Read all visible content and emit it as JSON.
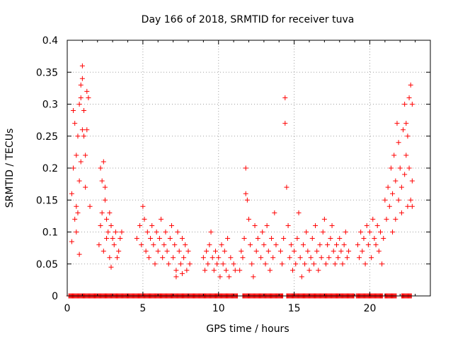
{
  "chart_data": {
    "type": "scatter",
    "title": "Day 166 of 2018, SRMTID for receiver tuva",
    "xlabel": "GPS time / hours",
    "ylabel": "SRMTID / TECUs",
    "xlim": [
      0,
      24
    ],
    "ylim": [
      0,
      0.4
    ],
    "grid": true,
    "marker": "+",
    "color": "#ff0000",
    "x_ticks": [
      0,
      5,
      10,
      15,
      20
    ],
    "x_tick_labels": [
      "0",
      "5",
      "10",
      "15",
      "20"
    ],
    "y_ticks": [
      0,
      0.05,
      0.1,
      0.15,
      0.2,
      0.25,
      0.3,
      0.35,
      0.4
    ],
    "y_tick_labels": [
      "0",
      "0.05",
      "0.1",
      "0.15",
      "0.2",
      "0.25",
      "0.3",
      "0.35",
      "0.4"
    ],
    "series": [
      {
        "name": "SRMTID",
        "points": [
          [
            0.3,
            0.16
          ],
          [
            0.4,
            0.2
          ],
          [
            0.4,
            0.29
          ],
          [
            0.5,
            0.27
          ],
          [
            0.5,
            0.12
          ],
          [
            0.6,
            0.14
          ],
          [
            0.6,
            0.22
          ],
          [
            0.7,
            0.13
          ],
          [
            0.7,
            0.25
          ],
          [
            0.8,
            0.18
          ],
          [
            0.8,
            0.3
          ],
          [
            0.9,
            0.31
          ],
          [
            0.9,
            0.33
          ],
          [
            0.9,
            0.21
          ],
          [
            1.0,
            0.36
          ],
          [
            1.0,
            0.34
          ],
          [
            1.0,
            0.26
          ],
          [
            1.1,
            0.25
          ],
          [
            1.1,
            0.29
          ],
          [
            1.2,
            0.22
          ],
          [
            1.2,
            0.17
          ],
          [
            1.3,
            0.32
          ],
          [
            1.3,
            0.26
          ],
          [
            1.4,
            0.31
          ],
          [
            1.5,
            0.14
          ],
          [
            0.8,
            0.065
          ],
          [
            0.3,
            0.085
          ],
          [
            0.6,
            0.1
          ],
          [
            2.2,
            0.2
          ],
          [
            2.3,
            0.18
          ],
          [
            2.4,
            0.21
          ],
          [
            2.5,
            0.15
          ],
          [
            2.2,
            0.11
          ],
          [
            2.3,
            0.13
          ],
          [
            2.5,
            0.17
          ],
          [
            2.6,
            0.12
          ],
          [
            2.7,
            0.1
          ],
          [
            2.8,
            0.13
          ],
          [
            2.9,
            0.11
          ],
          [
            3.0,
            0.09
          ],
          [
            2.8,
            0.06
          ],
          [
            2.9,
            0.045
          ],
          [
            3.1,
            0.08
          ],
          [
            3.2,
            0.1
          ],
          [
            3.4,
            0.07
          ],
          [
            3.5,
            0.09
          ],
          [
            3.6,
            0.1
          ],
          [
            3.3,
            0.06
          ],
          [
            2.1,
            0.08
          ],
          [
            2.4,
            0.07
          ],
          [
            2.6,
            0.09
          ],
          [
            4.6,
            0.09
          ],
          [
            4.8,
            0.11
          ],
          [
            4.9,
            0.08
          ],
          [
            5.0,
            0.14
          ],
          [
            5.1,
            0.12
          ],
          [
            5.2,
            0.07
          ],
          [
            5.3,
            0.1
          ],
          [
            5.4,
            0.06
          ],
          [
            5.5,
            0.09
          ],
          [
            5.6,
            0.11
          ],
          [
            5.7,
            0.08
          ],
          [
            5.8,
            0.05
          ],
          [
            5.9,
            0.1
          ],
          [
            6.0,
            0.07
          ],
          [
            6.1,
            0.09
          ],
          [
            6.2,
            0.12
          ],
          [
            6.3,
            0.06
          ],
          [
            6.4,
            0.08
          ],
          [
            6.5,
            0.1
          ],
          [
            6.6,
            0.07
          ],
          [
            6.7,
            0.05
          ],
          [
            6.8,
            0.09
          ],
          [
            6.9,
            0.11
          ],
          [
            7.0,
            0.06
          ],
          [
            7.1,
            0.08
          ],
          [
            7.2,
            0.04
          ],
          [
            7.3,
            0.1
          ],
          [
            7.4,
            0.07
          ],
          [
            7.5,
            0.05
          ],
          [
            7.6,
            0.09
          ],
          [
            7.7,
            0.06
          ],
          [
            7.8,
            0.08
          ],
          [
            7.9,
            0.04
          ],
          [
            8.0,
            0.07
          ],
          [
            8.1,
            0.05
          ],
          [
            7.2,
            0.03
          ],
          [
            7.6,
            0.035
          ],
          [
            9.0,
            0.06
          ],
          [
            9.1,
            0.04
          ],
          [
            9.2,
            0.07
          ],
          [
            9.3,
            0.05
          ],
          [
            9.4,
            0.08
          ],
          [
            9.5,
            0.1
          ],
          [
            9.6,
            0.06
          ],
          [
            9.7,
            0.04
          ],
          [
            9.8,
            0.07
          ],
          [
            9.9,
            0.05
          ],
          [
            10.0,
            0.06
          ],
          [
            10.1,
            0.03
          ],
          [
            10.2,
            0.08
          ],
          [
            10.3,
            0.05
          ],
          [
            10.4,
            0.07
          ],
          [
            10.5,
            0.04
          ],
          [
            10.6,
            0.09
          ],
          [
            10.8,
            0.06
          ],
          [
            11.0,
            0.05
          ],
          [
            11.1,
            0.04
          ],
          [
            10.7,
            0.03
          ],
          [
            11.4,
            0.04
          ],
          [
            11.5,
            0.07
          ],
          [
            11.6,
            0.06
          ],
          [
            11.7,
            0.09
          ],
          [
            11.8,
            0.2
          ],
          [
            11.8,
            0.16
          ],
          [
            11.9,
            0.15
          ],
          [
            12.0,
            0.12
          ],
          [
            12.1,
            0.08
          ],
          [
            12.2,
            0.05
          ],
          [
            12.3,
            0.03
          ],
          [
            12.4,
            0.11
          ],
          [
            12.5,
            0.07
          ],
          [
            12.6,
            0.09
          ],
          [
            12.8,
            0.06
          ],
          [
            12.9,
            0.1
          ],
          [
            13.0,
            0.08
          ],
          [
            13.1,
            0.05
          ],
          [
            13.2,
            0.11
          ],
          [
            13.3,
            0.07
          ],
          [
            13.4,
            0.04
          ],
          [
            13.5,
            0.09
          ],
          [
            13.6,
            0.06
          ],
          [
            13.7,
            0.13
          ],
          [
            13.8,
            0.08
          ],
          [
            14.1,
            0.07
          ],
          [
            14.2,
            0.05
          ],
          [
            14.3,
            0.09
          ],
          [
            14.4,
            0.31
          ],
          [
            14.4,
            0.27
          ],
          [
            14.5,
            0.17
          ],
          [
            14.6,
            0.11
          ],
          [
            14.7,
            0.06
          ],
          [
            14.8,
            0.08
          ],
          [
            14.9,
            0.04
          ],
          [
            15.0,
            0.07
          ],
          [
            15.1,
            0.05
          ],
          [
            15.2,
            0.09
          ],
          [
            15.3,
            0.13
          ],
          [
            15.4,
            0.06
          ],
          [
            15.5,
            0.03
          ],
          [
            15.6,
            0.08
          ],
          [
            15.7,
            0.05
          ],
          [
            15.8,
            0.1
          ],
          [
            15.9,
            0.07
          ],
          [
            16.0,
            0.04
          ],
          [
            16.1,
            0.06
          ],
          [
            16.2,
            0.09
          ],
          [
            16.3,
            0.05
          ],
          [
            16.4,
            0.11
          ],
          [
            16.5,
            0.07
          ],
          [
            16.6,
            0.04
          ],
          [
            16.7,
            0.08
          ],
          [
            16.8,
            0.06
          ],
          [
            16.9,
            0.1
          ],
          [
            17.0,
            0.12
          ],
          [
            17.1,
            0.05
          ],
          [
            17.2,
            0.08
          ],
          [
            17.3,
            0.06
          ],
          [
            17.4,
            0.09
          ],
          [
            17.5,
            0.11
          ],
          [
            17.6,
            0.07
          ],
          [
            17.7,
            0.05
          ],
          [
            17.8,
            0.08
          ],
          [
            17.9,
            0.06
          ],
          [
            18.0,
            0.09
          ],
          [
            18.1,
            0.07
          ],
          [
            18.2,
            0.05
          ],
          [
            18.3,
            0.08
          ],
          [
            18.4,
            0.1
          ],
          [
            18.5,
            0.06
          ],
          [
            18.6,
            0.07
          ],
          [
            19.2,
            0.08
          ],
          [
            19.3,
            0.06
          ],
          [
            19.4,
            0.1
          ],
          [
            19.5,
            0.07
          ],
          [
            19.6,
            0.09
          ],
          [
            19.7,
            0.05
          ],
          [
            19.8,
            0.11
          ],
          [
            19.9,
            0.08
          ],
          [
            20.0,
            0.1
          ],
          [
            20.1,
            0.06
          ],
          [
            20.2,
            0.12
          ],
          [
            20.3,
            0.09
          ],
          [
            20.4,
            0.08
          ],
          [
            20.5,
            0.11
          ],
          [
            20.6,
            0.07
          ],
          [
            20.7,
            0.1
          ],
          [
            20.8,
            0.05
          ],
          [
            20.9,
            0.09
          ],
          [
            21.0,
            0.15
          ],
          [
            21.1,
            0.12
          ],
          [
            21.2,
            0.17
          ],
          [
            21.3,
            0.14
          ],
          [
            21.4,
            0.2
          ],
          [
            21.5,
            0.16
          ],
          [
            21.6,
            0.22
          ],
          [
            21.7,
            0.18
          ],
          [
            21.8,
            0.27
          ],
          [
            21.9,
            0.24
          ],
          [
            22.0,
            0.2
          ],
          [
            22.1,
            0.17
          ],
          [
            22.2,
            0.26
          ],
          [
            22.3,
            0.3
          ],
          [
            22.4,
            0.22
          ],
          [
            22.5,
            0.25
          ],
          [
            22.6,
            0.31
          ],
          [
            22.7,
            0.33
          ],
          [
            22.8,
            0.3
          ],
          [
            22.8,
            0.18
          ],
          [
            22.7,
            0.15
          ],
          [
            22.6,
            0.2
          ],
          [
            22.5,
            0.14
          ],
          [
            22.4,
            0.27
          ],
          [
            21.5,
            0.1
          ],
          [
            21.7,
            0.12
          ],
          [
            21.9,
            0.15
          ],
          [
            22.1,
            0.13
          ],
          [
            22.3,
            0.19
          ],
          [
            22.8,
            0.14
          ]
        ]
      }
    ],
    "zero_band_x": [
      [
        0.1,
        11.3
      ],
      [
        11.6,
        14.3
      ],
      [
        14.5,
        19.0
      ],
      [
        19.1,
        20.9
      ],
      [
        21.0,
        21.8
      ],
      [
        22.1,
        22.8
      ]
    ]
  }
}
